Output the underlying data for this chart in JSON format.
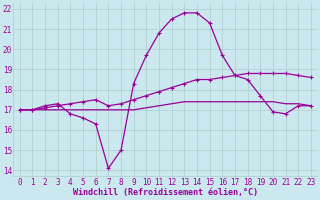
{
  "x": [
    0,
    1,
    2,
    3,
    4,
    5,
    6,
    7,
    8,
    9,
    10,
    11,
    12,
    13,
    14,
    15,
    16,
    17,
    18,
    19,
    20,
    21,
    22,
    23
  ],
  "line1_wavy": [
    17.0,
    17.0,
    17.2,
    17.3,
    16.8,
    16.6,
    16.3,
    14.1,
    15.0,
    18.3,
    19.7,
    20.8,
    21.5,
    21.8,
    21.8,
    21.3,
    19.7,
    18.7,
    18.5,
    17.7,
    16.9,
    16.8,
    17.2,
    17.2
  ],
  "line2_diag": [
    17.0,
    17.0,
    17.1,
    17.2,
    17.3,
    17.4,
    17.5,
    17.2,
    17.3,
    17.5,
    17.7,
    17.9,
    18.1,
    18.3,
    18.5,
    18.5,
    18.6,
    18.7,
    18.8,
    18.8,
    18.8,
    18.8,
    18.7,
    18.6
  ],
  "line3_flat": [
    17.0,
    17.0,
    17.0,
    17.0,
    17.0,
    17.0,
    17.0,
    17.0,
    17.0,
    17.0,
    17.1,
    17.2,
    17.3,
    17.4,
    17.4,
    17.4,
    17.4,
    17.4,
    17.4,
    17.4,
    17.4,
    17.3,
    17.3,
    17.2
  ],
  "line_color": "#990099",
  "bg_color": "#cce8ef",
  "grid_color": "#aacccc",
  "ylabel_vals": [
    14,
    15,
    16,
    17,
    18,
    19,
    20,
    21,
    22
  ],
  "xlabel_vals": [
    0,
    1,
    2,
    3,
    4,
    5,
    6,
    7,
    8,
    9,
    10,
    11,
    12,
    13,
    14,
    15,
    16,
    17,
    18,
    19,
    20,
    21,
    22,
    23
  ],
  "xlabel": "Windchill (Refroidissement éolien,°C)",
  "ylim": [
    13.7,
    22.3
  ],
  "xlim": [
    -0.5,
    23.5
  ],
  "tick_fontsize": 5.5,
  "xlabel_fontsize": 6.0,
  "linewidth": 0.9,
  "markersize": 3.0
}
